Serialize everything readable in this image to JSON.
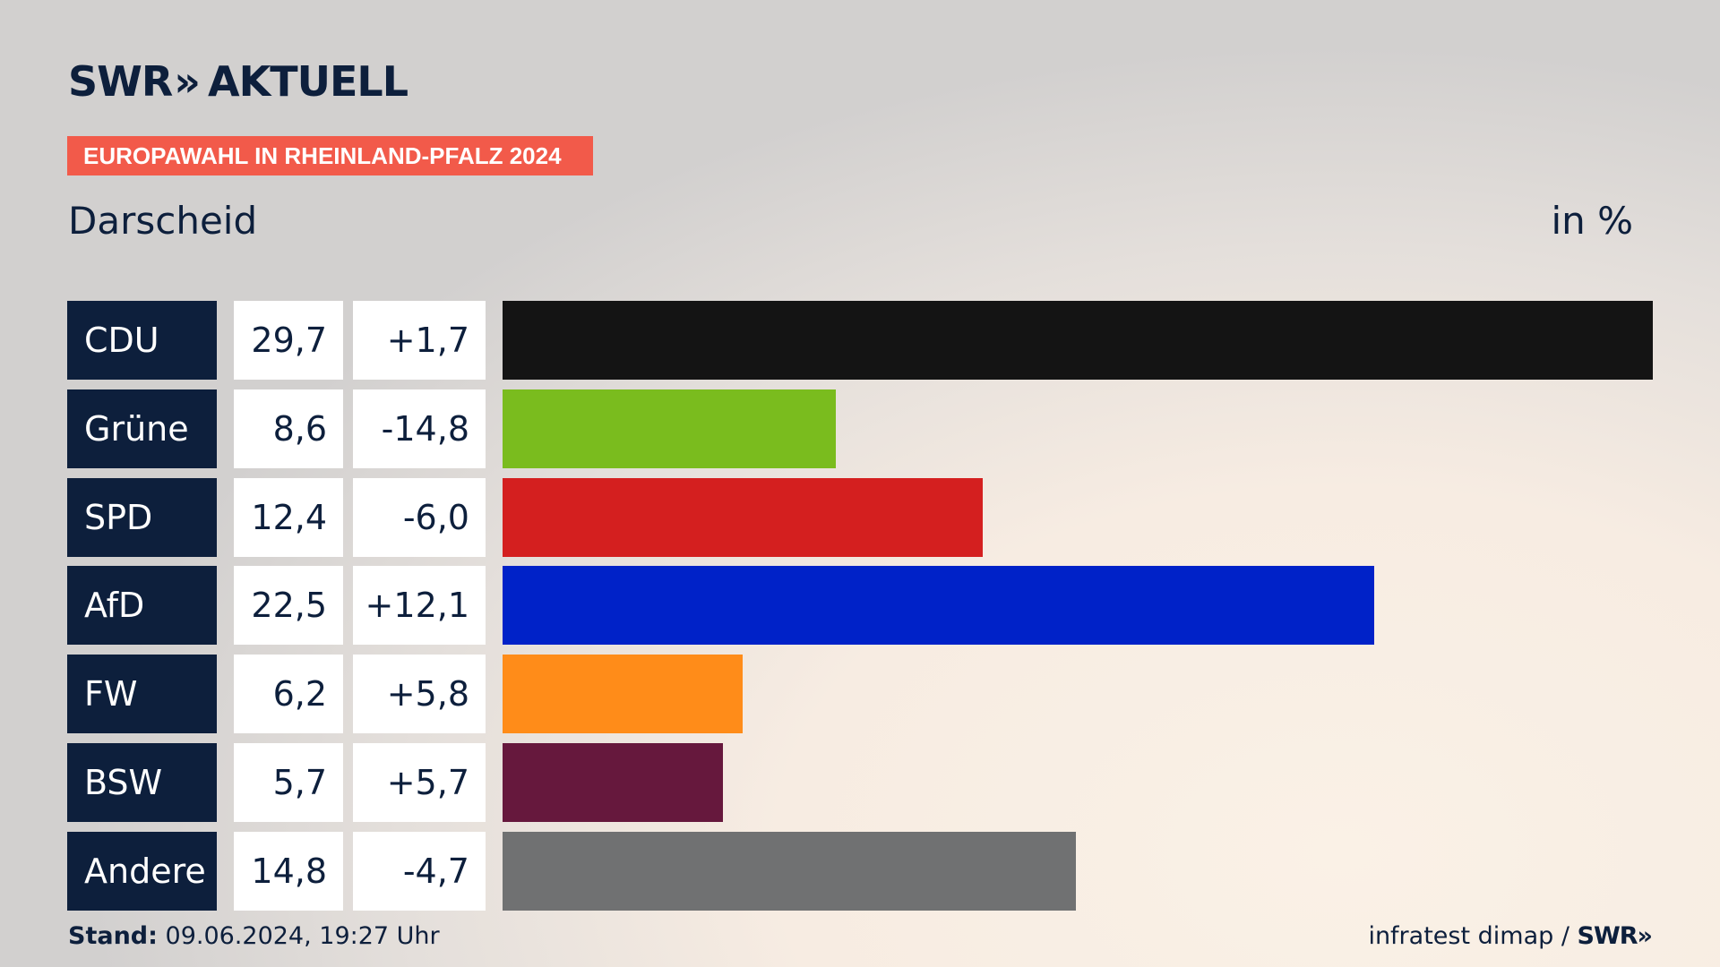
{
  "header": {
    "logo_text": "SWR",
    "logo_chevrons": "»",
    "logo_suffix": "AKTUELL",
    "badge": "EUROPAWAHL IN RHEINLAND-PFALZ 2024",
    "region": "Darscheid",
    "unit": "in %"
  },
  "colors": {
    "background": "#f5ede4",
    "label_bg": "#0d1f3c",
    "badge_bg": "#f25a4a"
  },
  "chart_data": {
    "type": "bar",
    "orientation": "horizontal",
    "title": "Darscheid",
    "xlabel": "",
    "ylabel": "",
    "unit": "in %",
    "xlim": [
      0,
      29.7
    ],
    "grid": false,
    "categories": [
      "CDU",
      "Grüne",
      "SPD",
      "AfD",
      "FW",
      "BSW",
      "Andere"
    ],
    "values": [
      29.7,
      8.6,
      12.4,
      22.5,
      6.2,
      5.7,
      14.8
    ],
    "value_labels": [
      "29,7",
      "8,6",
      "12,4",
      "22,5",
      "6,2",
      "5,7",
      "14,8"
    ],
    "change_labels": [
      "+1,7",
      "-14,8",
      "-6,0",
      "+12,1",
      "+5,8",
      "+5,7",
      "-4,7"
    ],
    "changes": [
      1.7,
      -14.8,
      -6.0,
      12.1,
      5.8,
      5.7,
      -4.7
    ],
    "colors": [
      "#141414",
      "#7abc1e",
      "#d41f1f",
      "#0022c8",
      "#ff8c19",
      "#66183d",
      "#707172"
    ]
  },
  "footer": {
    "stand_label": "Stand:",
    "stand_value": "09.06.2024, 19:27 Uhr",
    "source": "infratest dimap / ",
    "source_logo": "SWR»"
  }
}
